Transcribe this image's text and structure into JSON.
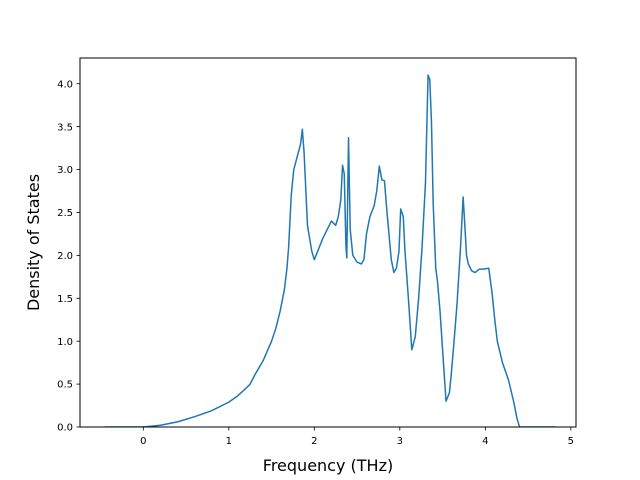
{
  "chart_data": {
    "type": "line",
    "title": "",
    "xlabel": "Frequency (THz)",
    "ylabel": "Density of States",
    "xlim": [
      -0.74,
      5.06
    ],
    "ylim": [
      0.0,
      4.3
    ],
    "xticks": [
      0,
      1,
      2,
      3,
      4,
      5
    ],
    "xtick_labels": [
      "0",
      "1",
      "2",
      "3",
      "4",
      "5"
    ],
    "yticks": [
      0.0,
      0.5,
      1.0,
      1.5,
      2.0,
      2.5,
      3.0,
      3.5,
      4.0
    ],
    "ytick_labels": [
      "0.0",
      "0.5",
      "1.0",
      "1.5",
      "2.0",
      "2.5",
      "3.0",
      "3.5",
      "4.0"
    ],
    "grid": false,
    "legend": "none",
    "line_color": "#1f77b4",
    "series": [
      {
        "x": [
          -0.45,
          -0.2,
          0.0,
          0.2,
          0.4,
          0.6,
          0.8,
          1.0,
          1.1,
          1.2,
          1.25,
          1.3,
          1.4,
          1.5,
          1.55,
          1.6,
          1.65,
          1.68,
          1.7,
          1.73,
          1.76,
          1.8,
          1.84,
          1.86,
          1.88,
          1.92,
          1.97,
          2.0,
          2.1,
          2.2,
          2.25,
          2.28,
          2.31,
          2.33,
          2.35,
          2.37,
          2.38,
          2.4,
          2.42,
          2.45,
          2.5,
          2.55,
          2.58,
          2.61,
          2.65,
          2.7,
          2.73,
          2.76,
          2.79,
          2.82,
          2.85,
          2.9,
          2.93,
          2.96,
          2.99,
          3.01,
          3.04,
          3.06,
          3.1,
          3.14,
          3.18,
          3.22,
          3.26,
          3.3,
          3.33,
          3.35,
          3.37,
          3.39,
          3.42,
          3.44,
          3.47,
          3.5,
          3.54,
          3.58,
          3.6,
          3.63,
          3.67,
          3.71,
          3.74,
          3.76,
          3.78,
          3.8,
          3.84,
          3.88,
          3.93,
          3.97,
          4.04,
          4.08,
          4.11,
          4.14,
          4.2,
          4.27,
          4.33,
          4.37,
          4.4,
          4.45,
          4.82
        ],
        "y": [
          0.0,
          0.0,
          0.0,
          0.02,
          0.06,
          0.12,
          0.19,
          0.29,
          0.36,
          0.45,
          0.5,
          0.6,
          0.77,
          1.0,
          1.15,
          1.35,
          1.6,
          1.85,
          2.1,
          2.7,
          3.0,
          3.15,
          3.3,
          3.47,
          3.2,
          2.35,
          2.05,
          1.95,
          2.2,
          2.4,
          2.35,
          2.45,
          2.65,
          3.05,
          2.95,
          2.1,
          1.97,
          3.37,
          2.3,
          2.0,
          1.92,
          1.9,
          1.95,
          2.25,
          2.45,
          2.58,
          2.75,
          3.04,
          2.88,
          2.87,
          2.5,
          1.95,
          1.8,
          1.85,
          2.05,
          2.54,
          2.45,
          2.05,
          1.5,
          0.9,
          1.05,
          1.5,
          2.1,
          2.85,
          4.1,
          4.05,
          3.55,
          2.6,
          1.85,
          1.7,
          1.35,
          0.9,
          0.3,
          0.4,
          0.6,
          0.95,
          1.45,
          2.1,
          2.68,
          2.35,
          2.0,
          1.9,
          1.82,
          1.8,
          1.84,
          1.84,
          1.85,
          1.55,
          1.25,
          1.0,
          0.75,
          0.55,
          0.3,
          0.1,
          0.0,
          0.0,
          0.0
        ]
      }
    ]
  }
}
